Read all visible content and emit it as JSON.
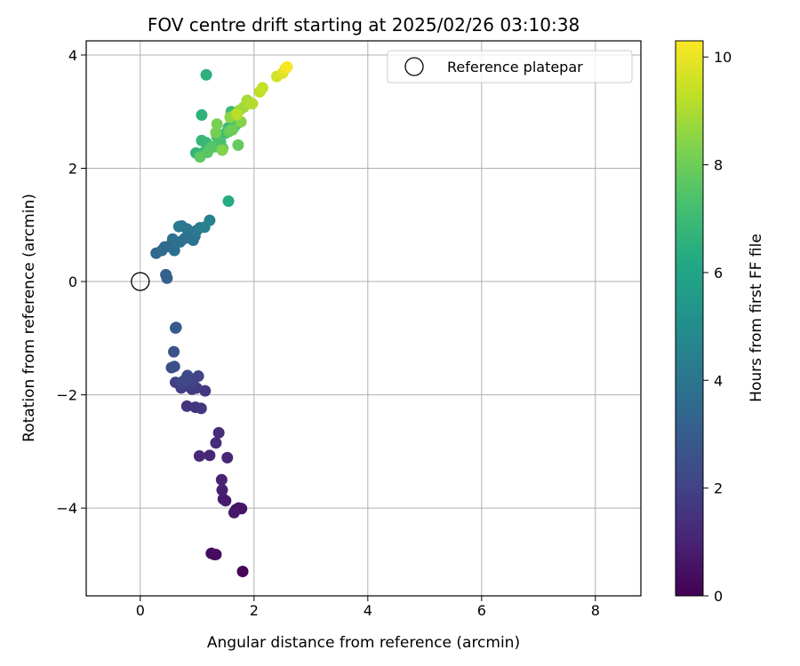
{
  "chart_data": {
    "type": "scatter",
    "title": "FOV centre drift starting at 2025/02/26 03:10:38",
    "xlabel": "Angular distance from reference (arcmin)",
    "ylabel": "Rotation from reference (arcmin)",
    "xlim": [
      -0.95,
      8.8
    ],
    "ylim": [
      -5.55,
      4.25
    ],
    "xticks": [
      0,
      2,
      4,
      6,
      8
    ],
    "xtick_labels": [
      "0",
      "2",
      "4",
      "6",
      "8"
    ],
    "yticks": [
      -4,
      -2,
      0,
      2,
      4
    ],
    "ytick_labels": [
      "−4",
      "−2",
      "0",
      "2",
      "4"
    ],
    "grid": true,
    "legend": {
      "placement": "top-right",
      "label": "Reference platepar"
    },
    "reference_point": {
      "x": 0,
      "y": 0
    },
    "colorbar": {
      "label": "Hours from first FF file",
      "colormap": "viridis",
      "range": [
        0,
        10.3
      ],
      "ticks": [
        0,
        2,
        4,
        6,
        8,
        10
      ],
      "tick_labels": [
        "0",
        "2",
        "4",
        "6",
        "8",
        "10"
      ]
    },
    "series": [
      {
        "points_xyt": [
          [
            1.8,
            -5.12,
            0.1
          ],
          [
            1.3,
            -4.82,
            0.2
          ],
          [
            1.25,
            -4.8,
            0.3
          ],
          [
            1.33,
            -4.82,
            0.35
          ],
          [
            1.68,
            -4.03,
            0.5
          ],
          [
            1.73,
            -4.0,
            0.55
          ],
          [
            1.78,
            -4.01,
            0.6
          ],
          [
            1.65,
            -4.08,
            0.65
          ],
          [
            1.5,
            -3.87,
            0.75
          ],
          [
            1.46,
            -3.84,
            0.8
          ],
          [
            1.44,
            -3.68,
            0.9
          ],
          [
            1.43,
            -3.5,
            1.0
          ],
          [
            1.22,
            -3.07,
            1.1
          ],
          [
            1.53,
            -3.11,
            1.15
          ],
          [
            1.04,
            -3.08,
            1.2
          ],
          [
            1.33,
            -2.85,
            1.3
          ],
          [
            1.38,
            -2.67,
            1.35
          ],
          [
            0.82,
            -2.2,
            1.5
          ],
          [
            0.97,
            -2.22,
            1.55
          ],
          [
            1.07,
            -2.24,
            1.6
          ],
          [
            1.14,
            -1.93,
            1.7
          ],
          [
            0.91,
            -1.9,
            1.75
          ],
          [
            0.99,
            -1.88,
            1.8
          ],
          [
            0.85,
            -1.85,
            1.85
          ],
          [
            0.72,
            -1.88,
            1.9
          ],
          [
            0.62,
            -1.78,
            1.95
          ],
          [
            0.88,
            -1.78,
            2.0
          ],
          [
            1.02,
            -1.67,
            2.05
          ],
          [
            0.94,
            -1.73,
            2.1
          ],
          [
            0.8,
            -1.72,
            2.15
          ],
          [
            0.74,
            -1.77,
            2.2
          ],
          [
            0.83,
            -1.66,
            2.25
          ],
          [
            0.55,
            -1.52,
            2.4
          ],
          [
            0.6,
            -1.5,
            2.5
          ],
          [
            0.59,
            -1.24,
            2.6
          ],
          [
            0.62,
            -0.82,
            2.8
          ],
          [
            0.63,
            -0.81,
            2.9
          ],
          [
            0.45,
            0.12,
            3.1
          ],
          [
            0.47,
            0.06,
            3.2
          ],
          [
            0.28,
            0.5,
            3.4
          ],
          [
            0.43,
            0.61,
            3.5
          ],
          [
            0.38,
            0.55,
            3.55
          ],
          [
            0.5,
            0.62,
            3.6
          ],
          [
            0.6,
            0.55,
            3.7
          ],
          [
            0.57,
            0.75,
            3.75
          ],
          [
            0.7,
            0.7,
            3.8
          ],
          [
            0.78,
            0.76,
            3.85
          ],
          [
            0.93,
            0.73,
            3.9
          ],
          [
            0.96,
            0.8,
            3.95
          ],
          [
            0.87,
            0.88,
            4.0
          ],
          [
            0.82,
            0.93,
            4.05
          ],
          [
            0.73,
            0.98,
            4.1
          ],
          [
            0.68,
            0.97,
            4.15
          ],
          [
            0.99,
            0.9,
            4.2
          ],
          [
            1.05,
            0.95,
            4.3
          ],
          [
            1.13,
            0.96,
            4.4
          ],
          [
            1.22,
            1.08,
            4.5
          ],
          [
            1.55,
            1.42,
            6.3
          ],
          [
            1.16,
            3.65,
            6.5
          ],
          [
            1.08,
            2.94,
            6.6
          ],
          [
            0.98,
            2.27,
            6.7
          ],
          [
            1.13,
            2.29,
            6.75
          ],
          [
            1.08,
            2.49,
            6.8
          ],
          [
            1.16,
            2.45,
            6.85
          ],
          [
            1.6,
            3.0,
            6.9
          ],
          [
            1.63,
            2.87,
            6.95
          ],
          [
            1.55,
            2.72,
            7.0
          ],
          [
            1.5,
            2.62,
            7.05
          ],
          [
            1.65,
            2.73,
            7.1
          ],
          [
            1.7,
            2.79,
            7.15
          ],
          [
            1.35,
            2.55,
            7.2
          ],
          [
            1.41,
            2.46,
            7.3
          ],
          [
            1.45,
            2.35,
            7.35
          ],
          [
            1.3,
            2.38,
            7.4
          ],
          [
            1.25,
            2.37,
            7.5
          ],
          [
            1.18,
            2.28,
            7.6
          ],
          [
            1.05,
            2.2,
            7.7
          ],
          [
            1.72,
            2.41,
            7.8
          ],
          [
            1.56,
            2.65,
            7.9
          ],
          [
            1.62,
            2.68,
            8.0
          ],
          [
            1.33,
            2.63,
            8.1
          ],
          [
            1.35,
            2.78,
            8.2
          ],
          [
            1.44,
            2.32,
            8.3
          ],
          [
            1.77,
            2.82,
            8.4
          ],
          [
            1.58,
            2.9,
            8.5
          ],
          [
            1.67,
            2.95,
            8.6
          ],
          [
            1.74,
            3.02,
            8.7
          ],
          [
            1.82,
            3.08,
            8.8
          ],
          [
            1.88,
            3.2,
            8.9
          ],
          [
            1.92,
            3.15,
            9.0
          ],
          [
            1.97,
            3.14,
            9.1
          ],
          [
            1.7,
            2.95,
            9.2
          ],
          [
            2.1,
            3.35,
            9.3
          ],
          [
            2.15,
            3.42,
            9.4
          ],
          [
            2.4,
            3.62,
            9.6
          ],
          [
            2.5,
            3.68,
            9.8
          ],
          [
            2.55,
            3.76,
            10.0
          ],
          [
            2.58,
            3.79,
            10.2
          ]
        ]
      }
    ]
  }
}
